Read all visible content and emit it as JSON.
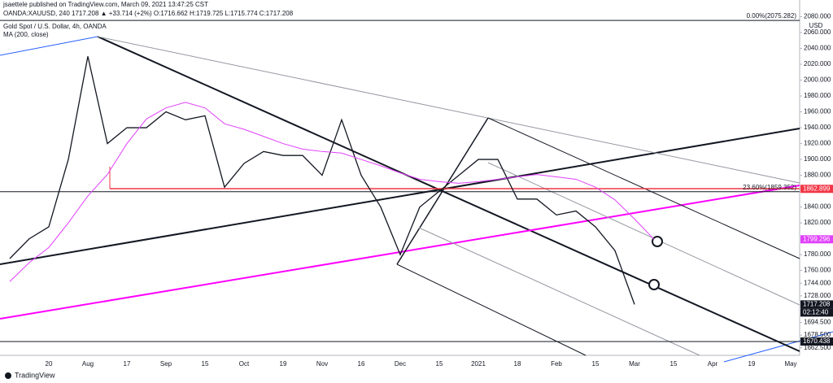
{
  "page": {
    "publisher": "jsaettele published on TradingView.com, March 09, 2021 13:47:25 CST",
    "symbol_line": "OANDA:XAUUSD, 240  1717.208  ▲ +33.714 (+2%)  O:1716.662  H:1719.725  L:1715.774  C:1717.208",
    "currency": "USD",
    "countdown": "02:12:40",
    "brand": "TradingView"
  },
  "chart_data": {
    "type": "line",
    "categories": [
      null,
      null,
      "20",
      null,
      "Aug",
      null,
      "17",
      null,
      "Sep",
      null,
      "15",
      null,
      "Oct",
      null,
      "19",
      null,
      "Nov",
      null,
      "16",
      null,
      "Dec",
      null,
      "15",
      null,
      "2021",
      null,
      "18",
      null,
      "Feb",
      null,
      "15",
      null,
      "Mar",
      null,
      "15",
      null,
      "Apr",
      null,
      "19",
      null,
      "May"
    ],
    "series": [
      {
        "name": "Gold Spot / U.S. Dollar, 4h, OANDA",
        "color": "#131722",
        "values": [
          1775,
          1800,
          1815,
          1900,
          2030,
          1920,
          1940,
          1940,
          1960,
          1950,
          1955,
          1865,
          1895,
          1910,
          1905,
          1905,
          1880,
          1950,
          1880,
          1840,
          1780,
          1840,
          1860,
          1880,
          1900,
          1900,
          1850,
          1850,
          1830,
          1835,
          1815,
          1785,
          1717.208,
          null,
          null,
          null,
          null,
          null,
          null,
          null,
          null
        ]
      },
      {
        "name": "MA (200, close)",
        "color": "#e040fb",
        "values": [
          1746,
          1770,
          1789,
          1820,
          1854,
          1881,
          1920,
          1951,
          1965,
          1972,
          1965,
          1945,
          1938,
          1929,
          1920,
          1913,
          1910,
          1908,
          1900,
          1892,
          1883,
          1875,
          1872,
          1870,
          1872,
          1875,
          1878,
          1881,
          1878,
          1875,
          1865,
          1849,
          1825,
          1799.296,
          null,
          null,
          null,
          null,
          null,
          null,
          null
        ]
      }
    ],
    "ylim": [
      1653,
      2101
    ],
    "yticks": [
      {
        "value": 2080,
        "label": "2080.000"
      },
      {
        "value": 2060,
        "label": "2060.000"
      },
      {
        "value": 2040,
        "label": "2040.000"
      },
      {
        "value": 2020,
        "label": "2020.000"
      },
      {
        "value": 2000,
        "label": "2000.000"
      },
      {
        "value": 1980,
        "label": "1980.000"
      },
      {
        "value": 1960,
        "label": "1960.000"
      },
      {
        "value": 1940,
        "label": "1940.000"
      },
      {
        "value": 1920,
        "label": "1920.000"
      },
      {
        "value": 1900,
        "label": "1900.000"
      },
      {
        "value": 1880,
        "label": "1880.000"
      },
      {
        "value": 1840,
        "label": "1840.000"
      },
      {
        "value": 1820,
        "label": "1820.000"
      },
      {
        "value": 1780,
        "label": "1780.000"
      },
      {
        "value": 1760,
        "label": "1760.000"
      },
      {
        "value": 1744,
        "label": "1744.000"
      },
      {
        "value": 1728,
        "label": "1728.000"
      },
      {
        "value": 1694.5,
        "label": "1694.500"
      },
      {
        "value": 1678.5,
        "label": "1678.500"
      },
      {
        "value": 1662.5,
        "label": "1662.500"
      }
    ],
    "levels": [
      {
        "value": 1862.899,
        "color": "#f23645"
      },
      {
        "value": 1799.296,
        "color": "#e040fb"
      },
      {
        "value": 1717.208,
        "color": "#131722"
      },
      {
        "value": 1670.438,
        "color": "#131722"
      }
    ],
    "fib": [
      {
        "label": "0.00%(2075.282)",
        "value": 2075.282
      },
      {
        "label": "23.60%(1859.352)",
        "value": 1859.352
      }
    ]
  }
}
